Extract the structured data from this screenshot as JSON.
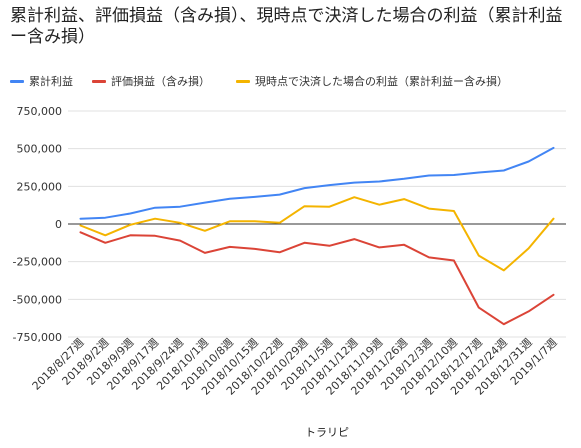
{
  "chart_data": {
    "type": "line",
    "title": "累計利益、評価損益（含み損）、現時点で決済した場合の利益（累計利益ー含み損）",
    "xlabel": "トラリピ",
    "ylabel": "",
    "ylim": [
      -750000,
      750000
    ],
    "yticks": [
      750000,
      500000,
      250000,
      0,
      -250000,
      -500000,
      -750000
    ],
    "ytick_labels": [
      "750,000",
      "500,000",
      "250,000",
      "0",
      "-250,000",
      "-500,000",
      "-750,000"
    ],
    "grid": true,
    "legend": "top",
    "categories": [
      "2018/8/27週",
      "2018/9/2週",
      "2018/9/9週",
      "2018/9/17週",
      "2018/9/24週",
      "2018/10/1週",
      "2018/10/8週",
      "2018/10/15週",
      "2018/10/22週",
      "2018/10/29週",
      "2018/11/5週",
      "2018/11/12週",
      "2018/11/19週",
      "2018/11/26週",
      "2018/12/3週",
      "2018/12/10週",
      "2018/12/17週",
      "2018/12/24週",
      "2018/12/31週",
      "2019/1/7週"
    ],
    "series": [
      {
        "name": "累計利益",
        "color": "#4285f4",
        "values": [
          35000,
          42000,
          70000,
          108000,
          115000,
          142000,
          168000,
          180000,
          195000,
          238000,
          258000,
          275000,
          282000,
          300000,
          322000,
          325000,
          342000,
          355000,
          415000,
          505000
        ]
      },
      {
        "name": "評価損益（含み損）",
        "color": "#db4437",
        "values": [
          -55000,
          -125000,
          -75000,
          -78000,
          -110000,
          -192000,
          -152000,
          -165000,
          -188000,
          -125000,
          -145000,
          -100000,
          -155000,
          -138000,
          -222000,
          -242000,
          -555000,
          -665000,
          -580000,
          -470000
        ]
      },
      {
        "name": "現時点で決済した場合の利益（累計利益ー含み損）",
        "color": "#f4b400",
        "values": [
          -10000,
          -75000,
          -5000,
          35000,
          8000,
          -45000,
          18000,
          18000,
          8000,
          118000,
          115000,
          178000,
          128000,
          165000,
          102000,
          86000,
          -210000,
          -308000,
          -162000,
          35000
        ]
      }
    ]
  }
}
